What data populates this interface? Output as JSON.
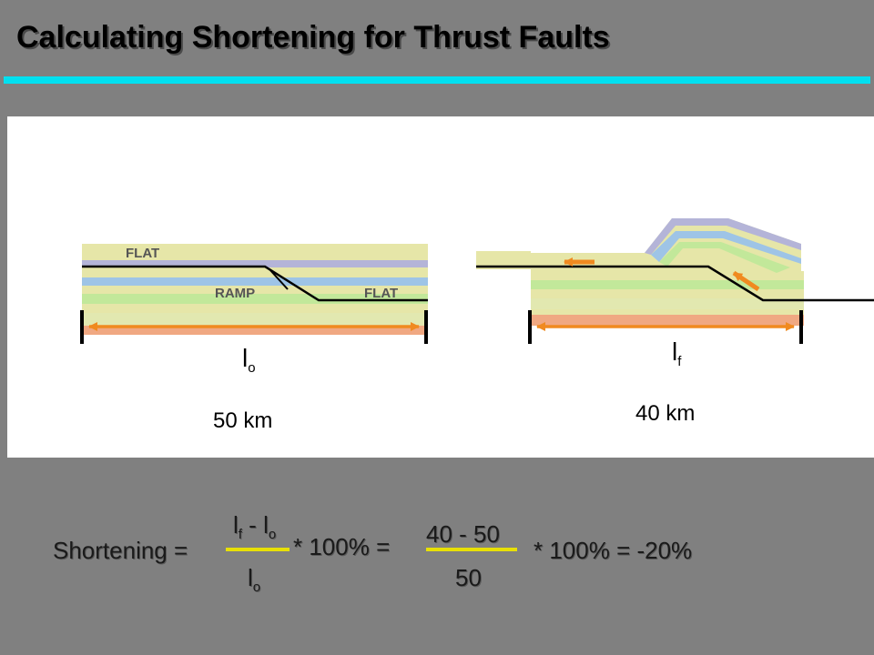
{
  "slide": {
    "title": "Calculating Shortening for Thrust Faults"
  },
  "diagram": {
    "before": {
      "labels": {
        "flat_top": "FLAT",
        "ramp": "RAMP",
        "flat_bottom": "FLAT"
      },
      "symbol_main": "l",
      "symbol_sub": "o",
      "length": "50 km"
    },
    "after": {
      "symbol_main": "l",
      "symbol_sub": "f",
      "length": "40 km"
    },
    "colors": {
      "arrow": "#f08a20",
      "layer_tan": "#e6e6a8",
      "layer_blue": "#9ec4e6",
      "layer_green": "#c2e89a",
      "layer_base": "#f0a882",
      "layer_lilac": "#b4b4d8",
      "fault": "#000000"
    }
  },
  "formula": {
    "label": "Shortening =",
    "num_l1": "l",
    "num_s1": "f",
    "num_minus": " - ",
    "num_l2": "l",
    "num_s2": "o",
    "den_l": "l",
    "den_s": "o",
    "times1": "* 100% =",
    "num2": "40 - 50",
    "den2": "50",
    "times2": "* 100% = -20%",
    "accent": "#e8e000"
  }
}
